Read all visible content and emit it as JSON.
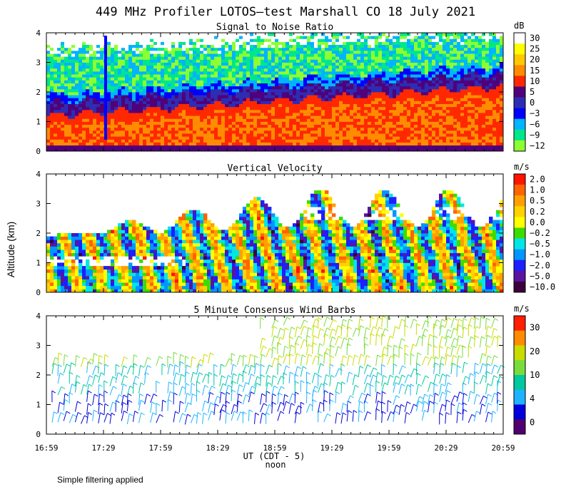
{
  "figure": {
    "title": "449 MHz Profiler LOTOS—test Marshall CO 18 July 2021",
    "y_axis_label": "Altitude (km)",
    "x_axis_label": "UT  (CDT - 5)",
    "x_axis_sublabel": "noon",
    "footnote": "Simple filtering applied"
  },
  "chart_data": [
    {
      "type": "heatmap",
      "title": "Signal to Noise Ratio",
      "ylabel": "Altitude (km)",
      "xlabel": "UT  (CDT - 5)",
      "x_ticks": [
        "16:59",
        "17:29",
        "17:59",
        "18:29",
        "18:59",
        "19:29",
        "19:59",
        "20:29",
        "20:59"
      ],
      "y_ticks": [
        "0",
        "1",
        "2",
        "3",
        "4"
      ],
      "ylim": [
        0,
        4
      ],
      "colorbar": {
        "unit": "dB",
        "labels": [
          "30",
          "25",
          "20",
          "15",
          "10",
          "5",
          "0",
          "−3",
          "−6",
          "−9",
          "−12"
        ],
        "colors": [
          "#ffffff",
          "#ffff00",
          "#ffc800",
          "#ff8c00",
          "#ff2800",
          "#50007a",
          "#2d2db4",
          "#0000ff",
          "#00b4ff",
          "#00e68c",
          "#8cff32"
        ]
      }
    },
    {
      "type": "heatmap",
      "title": "Vertical Velocity",
      "ylabel": "Altitude (km)",
      "x_ticks": [
        "16:59",
        "17:29",
        "17:59",
        "18:29",
        "18:59",
        "19:29",
        "19:59",
        "20:29",
        "20:59"
      ],
      "y_ticks": [
        "0",
        "1",
        "2",
        "3",
        "4"
      ],
      "ylim": [
        0,
        4
      ],
      "colorbar": {
        "unit": "m/s",
        "labels": [
          "2.0",
          "1.0",
          "0.5",
          "0.2",
          "0.0",
          "−0.2",
          "−0.5",
          "−1.0",
          "−2.0",
          "−5.0",
          "−10.0"
        ],
        "colors": [
          "#ff1400",
          "#ff6400",
          "#ffa000",
          "#ffd200",
          "#ffff00",
          "#3cdc00",
          "#00e6e6",
          "#0096ff",
          "#1e1eff",
          "#5a14a0",
          "#3c003c"
        ]
      }
    },
    {
      "type": "scatter",
      "title": "5 Minute Consensus Wind Barbs",
      "ylabel": "Altitude (km)",
      "x_ticks": [
        "16:59",
        "17:29",
        "17:59",
        "18:29",
        "18:59",
        "19:29",
        "19:59",
        "20:29",
        "20:59"
      ],
      "y_ticks": [
        "0",
        "1",
        "2",
        "3",
        "4"
      ],
      "ylim": [
        0,
        4
      ],
      "colorbar": {
        "unit": "m/s",
        "labels": [
          "30",
          "20",
          "10",
          "4",
          "0"
        ],
        "colors": [
          "#ff1e00",
          "#ff8c00",
          "#c8dc00",
          "#78dc3c",
          "#00c8a0",
          "#1eb4ff",
          "#0000dc",
          "#50006e"
        ]
      }
    }
  ]
}
